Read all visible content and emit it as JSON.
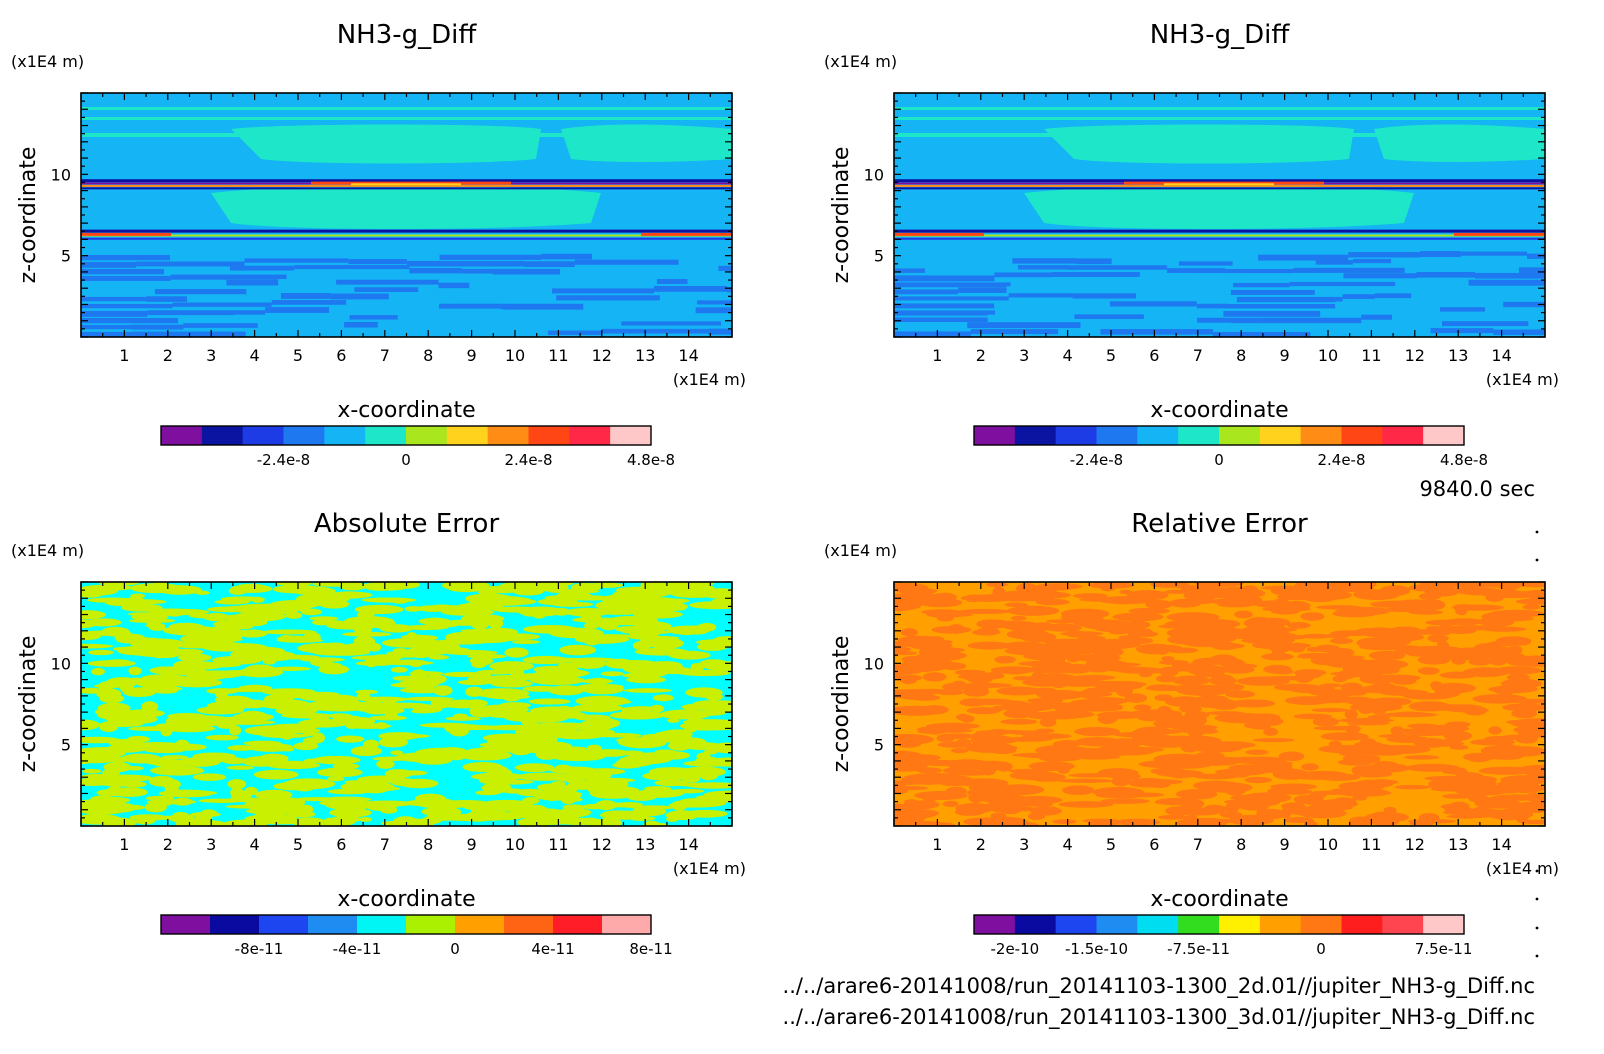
{
  "time_label": "9840.0 sec",
  "files": [
    "../../arare6-20141008/run_20141103-1300_2d.01//jupiter_NH3-g_Diff.nc",
    "../../arare6-20141008/run_20141103-1300_3d.01//jupiter_NH3-g_Diff.nc"
  ],
  "chart_data": [
    {
      "type": "heatmap",
      "title": "NH3-g_Diff",
      "xlabel": "x-coordinate",
      "ylabel": "z-coordinate",
      "x_unit": "(x1E4 m)",
      "y_unit": "(x1E4 m)",
      "xlim": [
        0,
        15
      ],
      "ylim": [
        0,
        15
      ],
      "xticks": [
        1,
        2,
        3,
        4,
        5,
        6,
        7,
        8,
        9,
        10,
        11,
        12,
        13,
        14
      ],
      "yticks": [
        5,
        10
      ],
      "pattern": "bands",
      "colorbar": {
        "colors": [
          "#7f0f9f",
          "#0a14a0",
          "#1e3ce6",
          "#1e78f0",
          "#14b4f5",
          "#1ee6c8",
          "#aae61e",
          "#ffd21e",
          "#ff8c14",
          "#ff4614",
          "#ff2846",
          "#ffc8c8"
        ],
        "tick_labels": [
          "-2.4e-8",
          "0",
          "2.4e-8",
          "4.8e-8"
        ],
        "tick_positions": [
          2,
          5,
          8,
          11
        ]
      }
    },
    {
      "type": "heatmap",
      "title": "NH3-g_Diff",
      "xlabel": "x-coordinate",
      "ylabel": "z-coordinate",
      "x_unit": "(x1E4 m)",
      "y_unit": "(x1E4 m)",
      "xlim": [
        0,
        15
      ],
      "ylim": [
        0,
        15
      ],
      "xticks": [
        1,
        2,
        3,
        4,
        5,
        6,
        7,
        8,
        9,
        10,
        11,
        12,
        13,
        14
      ],
      "yticks": [
        5,
        10
      ],
      "pattern": "bands",
      "colorbar": {
        "colors": [
          "#7f0f9f",
          "#0a14a0",
          "#1e3ce6",
          "#1e78f0",
          "#14b4f5",
          "#1ee6c8",
          "#aae61e",
          "#ffd21e",
          "#ff8c14",
          "#ff4614",
          "#ff2846",
          "#ffc8c8"
        ],
        "tick_labels": [
          "-2.4e-8",
          "0",
          "2.4e-8",
          "4.8e-8"
        ],
        "tick_positions": [
          2,
          5,
          8,
          11
        ]
      }
    },
    {
      "type": "heatmap",
      "title": "Absolute Error",
      "xlabel": "x-coordinate",
      "ylabel": "z-coordinate",
      "x_unit": "(x1E4 m)",
      "y_unit": "(x1E4 m)",
      "xlim": [
        0,
        15
      ],
      "ylim": [
        0,
        15
      ],
      "xticks": [
        1,
        2,
        3,
        4,
        5,
        6,
        7,
        8,
        9,
        10,
        11,
        12,
        13,
        14
      ],
      "yticks": [
        5,
        10
      ],
      "pattern": "noise-two-level",
      "field_colors": [
        "#00ffff",
        "#c8f000"
      ],
      "colorbar": {
        "colors": [
          "#7f0f9f",
          "#0a0aa0",
          "#1e46f0",
          "#1e8cf0",
          "#00f5f5",
          "#aaf000",
          "#ffa000",
          "#ff6414",
          "#ff1e28",
          "#ffaaaa"
        ],
        "tick_labels": [
          "-8e-11",
          "-4e-11",
          "0",
          "4e-11",
          "8e-11"
        ],
        "tick_positions": [
          1,
          3,
          5,
          7,
          9
        ]
      }
    },
    {
      "type": "heatmap",
      "title": "Relative Error",
      "xlabel": "x-coordinate",
      "ylabel": "z-coordinate",
      "x_unit": "(x1E4 m)",
      "y_unit": "(x1E4 m)",
      "xlim": [
        0,
        15
      ],
      "ylim": [
        0,
        15
      ],
      "xticks": [
        1,
        2,
        3,
        4,
        5,
        6,
        7,
        8,
        9,
        10,
        11,
        12,
        13,
        14
      ],
      "yticks": [
        5,
        10
      ],
      "pattern": "noise-two-level",
      "field_colors": [
        "#ffa000",
        "#ff7814"
      ],
      "colorbar": {
        "colors": [
          "#7f0f9f",
          "#0a0aa0",
          "#1e46f0",
          "#1e8cf0",
          "#00dcf0",
          "#32dc1e",
          "#fff000",
          "#ffa000",
          "#ff7814",
          "#ff1e1e",
          "#ff4650",
          "#ffc8c8"
        ],
        "tick_labels": [
          "-2e-10",
          "-1.5e-10",
          "-7.5e-11",
          "0",
          "7.5e-11"
        ],
        "tick_positions": [
          0,
          2,
          4.5,
          7.5,
          10.5
        ]
      }
    }
  ]
}
